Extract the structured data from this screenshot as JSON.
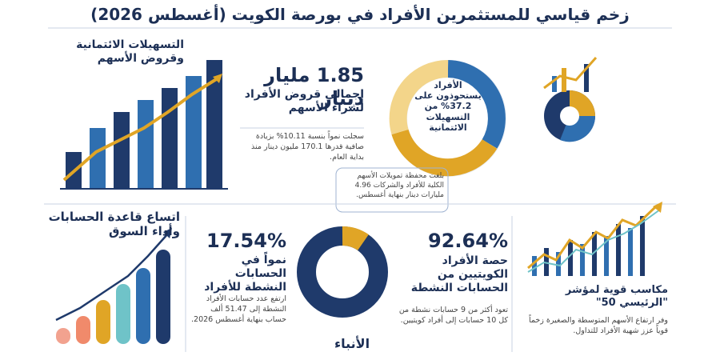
{
  "header": {
    "title": "زخم قياسي للمستثمرين الأفراد في بورصة الكويت (أغسطس 2026)"
  },
  "credit_panel": {
    "title": "التسهيلات الائتمانية وقروض الأسهم"
  },
  "loans": {
    "amount": "1.85 مليار دينار",
    "caption": "إجمالي قروض الأفراد لشراء الأسهم",
    "note": "سجلت نمواً بنسبة 10.11% بزيادة صافية قدرها 170.1 مليون دينار منذ بداية العام."
  },
  "facilities": {
    "caption": "الأفراد يستحوذون على 37.2% من التسهيلات الائتمانية",
    "note": "بلغت محفظة تمويلات الأسهم الكلية للأفراد والشركات 4.96 مليارات دينار بنهاية أغسطس."
  },
  "accounts_panel": {
    "title": "اتساع قاعدة الحسابات وأداء السوق"
  },
  "active_accounts": {
    "growth": "17.54%",
    "caption": "نمواً في الحسابات النشطة للأفراد",
    "note": "ارتفع عدد حسابات الأفراد النشطة إلى 51.47 ألف حساب بنهاية أغسطس 2026."
  },
  "kuwaiti_share": {
    "share": "92.64%",
    "caption": "حصة الأفراد الكويتيين من الحسابات النشطة",
    "note": "تعود أكثر من 9 حسابات نشطة من كل 10 حسابات إلى أفراد كويتيين."
  },
  "index": {
    "caption": "مكاسب قوية لمؤشر \"الرئيسي 50\"",
    "note": "وفر ارتفاع الأسهم المتوسطة والصغيرة زخماً قوياً عزز شهية الأفراد للتداول."
  },
  "footer": {
    "logo": "الأنباء"
  }
}
